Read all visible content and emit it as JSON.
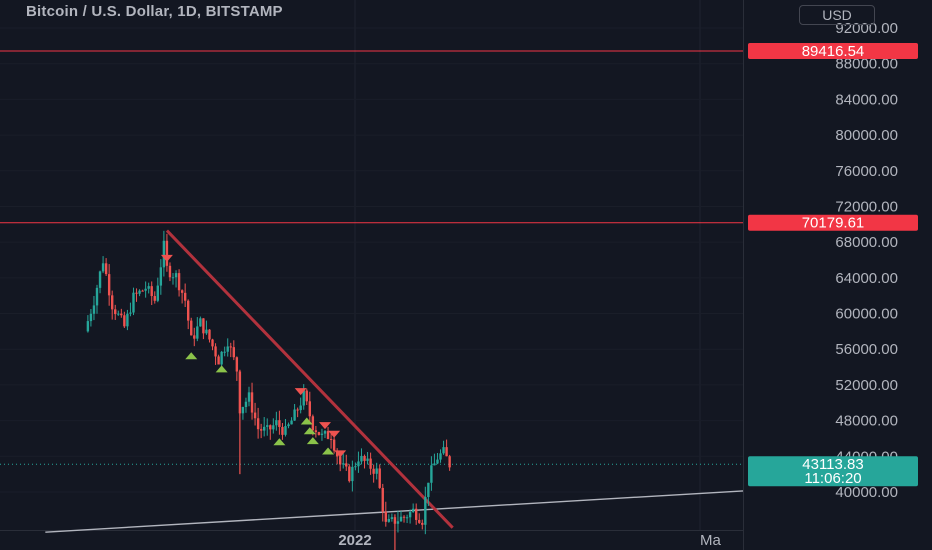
{
  "header": {
    "title": "Bitcoin / U.S. Dollar, 1D, BITSTAMP",
    "currency_button": "USD"
  },
  "colors": {
    "background": "#131722",
    "up": "#26a69a",
    "down": "#ef5350",
    "trendline": "#b2323d",
    "level_line": "#f23645",
    "support_line": "#b2b5be"
  },
  "chart_data": {
    "type": "candlestick",
    "title": "Bitcoin / U.S. Dollar, 1D, BITSTAMP",
    "y_ticks": [
      "92000.00",
      "88000.00",
      "84000.00",
      "80000.00",
      "76000.00",
      "72000.00",
      "68000.00",
      "64000.00",
      "60000.00",
      "56000.00",
      "52000.00",
      "48000.00",
      "44000.00",
      "40000.00"
    ],
    "ylim": [
      37000,
      93500
    ],
    "x_ticks": [
      "2022",
      "Ma"
    ],
    "grid": true,
    "price_labels": [
      {
        "text": "89416.54",
        "value": 89416.54,
        "color": "#f23645"
      },
      {
        "text": "70179.61",
        "value": 70179.61,
        "color": "#f23645"
      },
      {
        "text": "43113.83",
        "value": 43113.83,
        "color": "#26a69a",
        "countdown": "11:06:20"
      }
    ],
    "horizontal_levels": [
      89416.54,
      70179.61
    ],
    "trendline": {
      "from": [
        "Nov 10 2021",
        69300
      ],
      "to": [
        "Feb 12 2022",
        36000
      ]
    },
    "support_line": {
      "from": [
        "Oct 1 2021",
        35500
      ],
      "to": [
        "Mar 10 2022",
        40400
      ]
    },
    "close_points": [
      [
        "Oct 14 2021",
        58000
      ],
      [
        "Oct 17 2021",
        61500
      ],
      [
        "Oct 20 2021",
        66000
      ],
      [
        "Oct 23 2021",
        61000
      ],
      [
        "Oct 27 2021",
        58500
      ],
      [
        "Oct 30 2021",
        61800
      ],
      [
        "Nov 3 2021",
        62900
      ],
      [
        "Nov 6 2021",
        61500
      ],
      [
        "Nov 9 2021",
        67500
      ],
      [
        "Nov 10 2021",
        65000
      ],
      [
        "Nov 13 2021",
        64200
      ],
      [
        "Nov 16 2021",
        61500
      ],
      [
        "Nov 18 2021",
        57000
      ],
      [
        "Nov 21 2021",
        59000
      ],
      [
        "Nov 24 2021",
        57100
      ],
      [
        "Nov 27 2021",
        54800
      ],
      [
        "Nov 30 2021",
        57000
      ],
      [
        "Dec 3 2021",
        53700
      ],
      [
        "Dec 4 2021",
        49400
      ],
      [
        "Dec 7 2021",
        50600
      ],
      [
        "Dec 10 2021",
        47100
      ],
      [
        "Dec 13 2021",
        46800
      ],
      [
        "Dec 16 2021",
        47700
      ],
      [
        "Dec 19 2021",
        46700
      ],
      [
        "Dec 22 2021",
        48600
      ],
      [
        "Dec 25 2021",
        50800
      ],
      [
        "Dec 28 2021",
        47500
      ],
      [
        "Dec 31 2021",
        46200
      ],
      [
        "Jan 3 2022",
        46400
      ],
      [
        "Jan 6 2022",
        43100
      ],
      [
        "Jan 9 2022",
        41800
      ],
      [
        "Jan 12 2022",
        43900
      ],
      [
        "Jan 15 2022",
        43100
      ],
      [
        "Jan 18 2022",
        42300
      ],
      [
        "Jan 21 2022",
        36300
      ],
      [
        "Jan 24 2022",
        36800
      ],
      [
        "Jan 27 2022",
        37200
      ],
      [
        "Jan 30 2022",
        37900
      ],
      [
        "Feb 2 2022",
        36900
      ],
      [
        "Feb 4 2022",
        41500
      ],
      [
        "Feb 7 2022",
        43900
      ],
      [
        "Feb 9 2022",
        44400
      ],
      [
        "Feb 11 2022",
        43113.83
      ]
    ],
    "signal_markers": [
      {
        "type": "sell",
        "date": "Nov 10 2021"
      },
      {
        "type": "buy",
        "date": "Nov 18 2021"
      },
      {
        "type": "buy",
        "date": "Nov 28 2021"
      },
      {
        "type": "buy",
        "date": "Dec 17 2021"
      },
      {
        "type": "sell",
        "date": "Dec 24 2021"
      },
      {
        "type": "buy",
        "date": "Dec 26 2021"
      },
      {
        "type": "buy",
        "date": "Dec 27 2021"
      },
      {
        "type": "buy",
        "date": "Dec 28 2021"
      },
      {
        "type": "sell",
        "date": "Jan 1 2022"
      },
      {
        "type": "buy",
        "date": "Jan 2 2022"
      },
      {
        "type": "sell",
        "date": "Jan 4 2022"
      },
      {
        "type": "sell",
        "date": "Jan 6 2022"
      }
    ]
  }
}
